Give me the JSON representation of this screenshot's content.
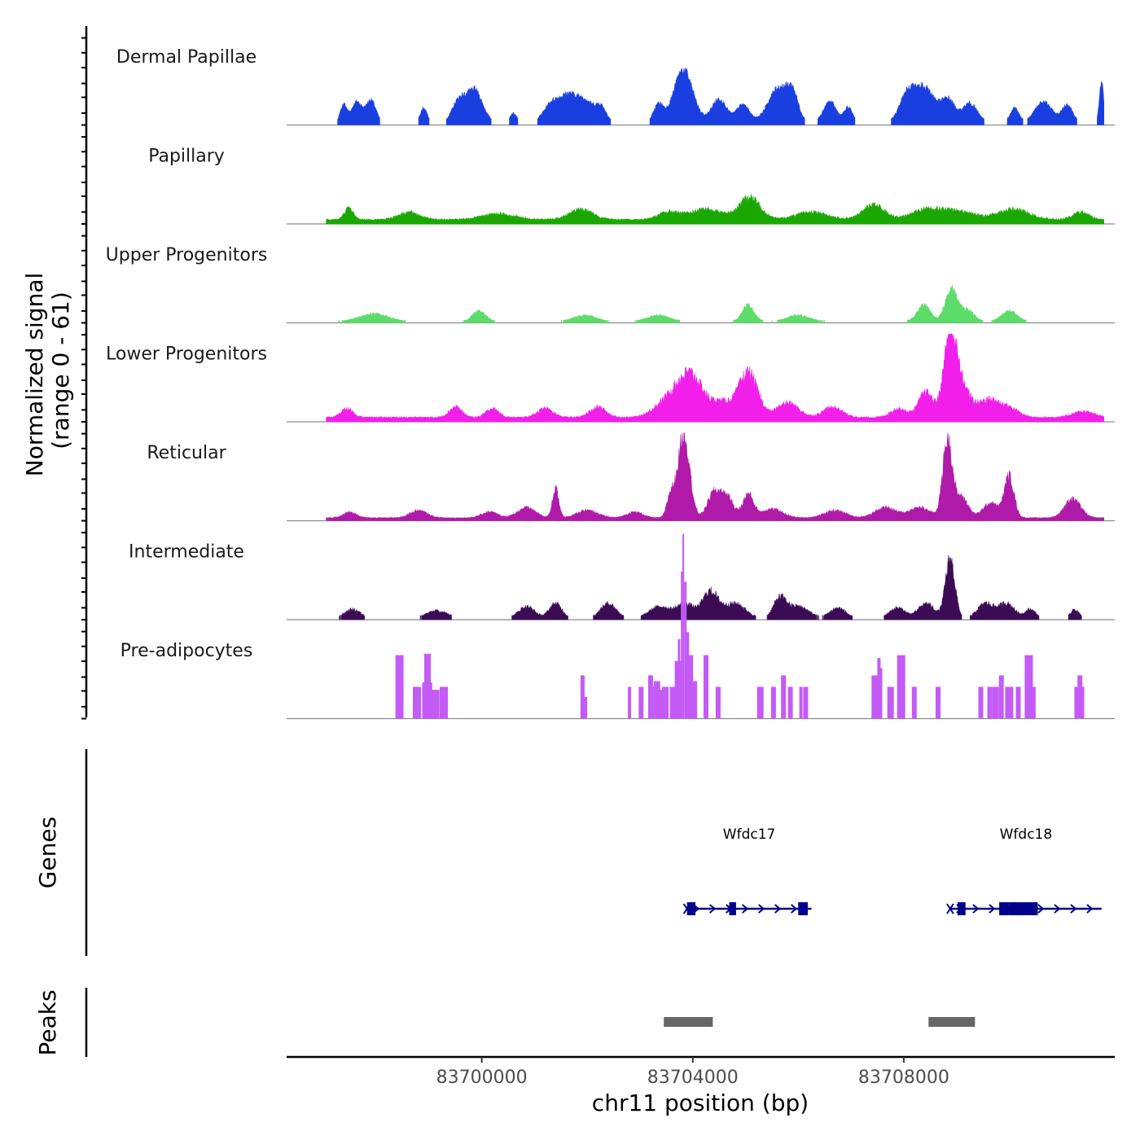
{
  "chart_data": {
    "type": "area",
    "title": "",
    "ylabel": "Normalized signal",
    "ylabel_range": "(range 0 - 61)",
    "xlabel": "chr11 position (bp)",
    "chromosome": "chr11",
    "xlim": [
      83696300,
      83712000
    ],
    "ylim": [
      0,
      61
    ],
    "x_ticks": [
      {
        "value": 83700000,
        "label": "83700000"
      },
      {
        "value": 83704000,
        "label": "83704000"
      },
      {
        "value": 83708000,
        "label": "83708000"
      }
    ],
    "data_extent": [
      83697050,
      83711800
    ],
    "series": [
      {
        "name": "Dermal Papillae",
        "color": "#1a3fe0",
        "baseline": 2,
        "noise": 0.2,
        "gate": 0.42,
        "peaks": [
          [
            83697380,
            60,
            12
          ],
          [
            83697630,
            100,
            14
          ],
          [
            83697900,
            90,
            15
          ],
          [
            83698900,
            60,
            10
          ],
          [
            83699560,
            120,
            14
          ],
          [
            83699860,
            150,
            22
          ],
          [
            83700600,
            60,
            6
          ],
          [
            83701350,
            160,
            14
          ],
          [
            83701650,
            140,
            15
          ],
          [
            83701950,
            160,
            15
          ],
          [
            83702260,
            100,
            10
          ],
          [
            83703350,
            90,
            12
          ],
          [
            83703820,
            180,
            36
          ],
          [
            83704500,
            140,
            16
          ],
          [
            83704950,
            120,
            12
          ],
          [
            83705640,
            200,
            24
          ],
          [
            83705900,
            100,
            14
          ],
          [
            83706600,
            120,
            14
          ],
          [
            83706950,
            80,
            10
          ],
          [
            83708050,
            140,
            14
          ],
          [
            83708380,
            220,
            24
          ],
          [
            83708850,
            120,
            14
          ],
          [
            83709250,
            140,
            13
          ],
          [
            83710100,
            80,
            10
          ],
          [
            83710650,
            160,
            14
          ],
          [
            83711100,
            100,
            12
          ],
          [
            83711750,
            40,
            28
          ]
        ]
      },
      {
        "name": "Papillary",
        "color": "#1aa800",
        "baseline": 3,
        "noise": 0.35,
        "gate": 0,
        "peaks": [
          [
            83697480,
            80,
            8
          ],
          [
            83698620,
            200,
            5
          ],
          [
            83700320,
            300,
            4
          ],
          [
            83701880,
            220,
            7
          ],
          [
            83703550,
            200,
            5
          ],
          [
            83704260,
            300,
            7
          ],
          [
            83705080,
            200,
            15
          ],
          [
            83706250,
            300,
            5
          ],
          [
            83707430,
            200,
            10
          ],
          [
            83708450,
            300,
            7
          ],
          [
            83709060,
            300,
            5
          ],
          [
            83710070,
            300,
            7
          ],
          [
            83711360,
            150,
            5
          ]
        ]
      },
      {
        "name": "Upper Progenitors",
        "color": "#5ddc6a",
        "baseline": 1.2,
        "noise": 0.3,
        "gate": 0.15,
        "peaks": [
          [
            83697950,
            260,
            5
          ],
          [
            83699950,
            120,
            7
          ],
          [
            83701950,
            200,
            4
          ],
          [
            83703350,
            200,
            4
          ],
          [
            83705050,
            110,
            11
          ],
          [
            83706000,
            200,
            4
          ],
          [
            83708380,
            120,
            11
          ],
          [
            83708900,
            110,
            22
          ],
          [
            83709200,
            120,
            8
          ],
          [
            83710000,
            140,
            7
          ]
        ]
      },
      {
        "name": "Lower Progenitors",
        "color": "#f21ee9",
        "baseline": 3,
        "noise": 0.35,
        "gate": 0.02,
        "peaks": [
          [
            83697450,
            110,
            6
          ],
          [
            83699500,
            120,
            7
          ],
          [
            83700200,
            120,
            6
          ],
          [
            83701200,
            150,
            6
          ],
          [
            83702200,
            150,
            7
          ],
          [
            83703450,
            220,
            9
          ],
          [
            83703800,
            200,
            17
          ],
          [
            83704050,
            200,
            19
          ],
          [
            83704550,
            200,
            10
          ],
          [
            83705050,
            180,
            30
          ],
          [
            83705800,
            200,
            10
          ],
          [
            83706650,
            180,
            7
          ],
          [
            83707900,
            150,
            6
          ],
          [
            83708420,
            140,
            17
          ],
          [
            83708880,
            120,
            56
          ],
          [
            83709120,
            150,
            18
          ],
          [
            83709600,
            200,
            12
          ],
          [
            83710000,
            180,
            6
          ],
          [
            83711400,
            200,
            4
          ]
        ]
      },
      {
        "name": "Reticular",
        "color": "#b01aa8",
        "baseline": 2,
        "noise": 0.3,
        "gate": 0.02,
        "peaks": [
          [
            83697500,
            120,
            4
          ],
          [
            83698800,
            160,
            5
          ],
          [
            83700150,
            150,
            4
          ],
          [
            83700850,
            170,
            7
          ],
          [
            83701400,
            60,
            20
          ],
          [
            83702000,
            200,
            5
          ],
          [
            83702900,
            150,
            4
          ],
          [
            83703580,
            70,
            15
          ],
          [
            83703830,
            110,
            58
          ],
          [
            83704400,
            120,
            17
          ],
          [
            83704650,
            120,
            14
          ],
          [
            83705050,
            100,
            16
          ],
          [
            83705500,
            200,
            6
          ],
          [
            83706700,
            200,
            5
          ],
          [
            83707650,
            200,
            7
          ],
          [
            83708300,
            200,
            7
          ],
          [
            83708830,
            90,
            53
          ],
          [
            83709100,
            120,
            14
          ],
          [
            83709650,
            150,
            10
          ],
          [
            83710000,
            90,
            28
          ],
          [
            83711200,
            150,
            13
          ]
        ]
      },
      {
        "name": "Intermediate",
        "color": "#3b0c55",
        "baseline": 1,
        "noise": 0.35,
        "gate": 0.25,
        "peaks": [
          [
            83697550,
            150,
            6
          ],
          [
            83699150,
            200,
            5
          ],
          [
            83700850,
            150,
            8
          ],
          [
            83701400,
            120,
            10
          ],
          [
            83702400,
            150,
            10
          ],
          [
            83703380,
            200,
            8
          ],
          [
            83703860,
            150,
            10
          ],
          [
            83704330,
            150,
            18
          ],
          [
            83704800,
            200,
            10
          ],
          [
            83705650,
            120,
            13
          ],
          [
            83706000,
            200,
            8
          ],
          [
            83706750,
            150,
            7
          ],
          [
            83707880,
            150,
            7
          ],
          [
            83708430,
            150,
            10
          ],
          [
            83708880,
            90,
            40
          ],
          [
            83709550,
            150,
            10
          ],
          [
            83709950,
            150,
            10
          ],
          [
            83710400,
            100,
            6
          ],
          [
            83711240,
            80,
            6
          ]
        ]
      },
      {
        "name": "Pre-adipocytes",
        "color": "#c45bf6",
        "baseline": 0,
        "noise": 0,
        "bars": [
          [
            83698440,
            10,
            44
          ],
          [
            83698770,
            10,
            22
          ],
          [
            83698900,
            4,
            25
          ],
          [
            83698970,
            8,
            45
          ],
          [
            83699030,
            4,
            25
          ],
          [
            83699120,
            10,
            20
          ],
          [
            83699280,
            10,
            22
          ],
          [
            83701910,
            5,
            30
          ],
          [
            83701960,
            5,
            15
          ],
          [
            83702800,
            4,
            22
          ],
          [
            83703020,
            6,
            22
          ],
          [
            83703200,
            6,
            30
          ],
          [
            83703260,
            4,
            22
          ],
          [
            83703320,
            8,
            26
          ],
          [
            83703400,
            4,
            20
          ],
          [
            83703480,
            8,
            22
          ],
          [
            83703640,
            10,
            22
          ],
          [
            83703720,
            8,
            40
          ],
          [
            83703740,
            3,
            55
          ],
          [
            83703790,
            2,
            102
          ],
          [
            83703820,
            2,
            128
          ],
          [
            83703860,
            3,
            95
          ],
          [
            83703900,
            4,
            60
          ],
          [
            83703960,
            6,
            44
          ],
          [
            83704020,
            8,
            26
          ],
          [
            83704250,
            6,
            44
          ],
          [
            83704480,
            6,
            22
          ],
          [
            83705280,
            8,
            22
          ],
          [
            83705530,
            6,
            22
          ],
          [
            83705720,
            6,
            30
          ],
          [
            83705850,
            6,
            22
          ],
          [
            83706050,
            4,
            22
          ],
          [
            83706140,
            6,
            22
          ],
          [
            83707450,
            8,
            30
          ],
          [
            83707530,
            4,
            42
          ],
          [
            83707570,
            3,
            35
          ],
          [
            83707750,
            8,
            22
          ],
          [
            83707950,
            10,
            44
          ],
          [
            83708200,
            6,
            22
          ],
          [
            83708650,
            6,
            22
          ],
          [
            83709460,
            6,
            22
          ],
          [
            83709630,
            6,
            22
          ],
          [
            83709740,
            8,
            22
          ],
          [
            83709850,
            6,
            30
          ],
          [
            83710000,
            10,
            22
          ],
          [
            83710170,
            6,
            22
          ],
          [
            83710370,
            10,
            44
          ],
          [
            83710470,
            4,
            22
          ],
          [
            83711280,
            6,
            22
          ],
          [
            83711340,
            6,
            30
          ],
          [
            83711390,
            4,
            22
          ]
        ]
      }
    ],
    "genes": [
      {
        "name": "Wfdc17",
        "start": 83703890,
        "end": 83706250,
        "strand": "+",
        "color": "#00008b",
        "exons": [
          [
            83703890,
            83704050
          ],
          [
            83704690,
            83704820
          ],
          [
            83706000,
            83706180
          ]
        ]
      },
      {
        "name": "Wfdc18",
        "start": 83708880,
        "end": 83711750,
        "strand": "+",
        "color": "#00008b",
        "exons": [
          [
            83709020,
            83709170
          ],
          [
            83709810,
            83710000
          ],
          [
            83710000,
            83710540
          ]
        ]
      }
    ],
    "peaks_track": {
      "label": "Peaks",
      "color": "#666666",
      "intervals": [
        [
          83703450,
          83704380
        ],
        [
          83708470,
          83709350
        ]
      ]
    },
    "track_panels": [
      {
        "label": "Genes"
      },
      {
        "label": "Peaks"
      }
    ]
  }
}
